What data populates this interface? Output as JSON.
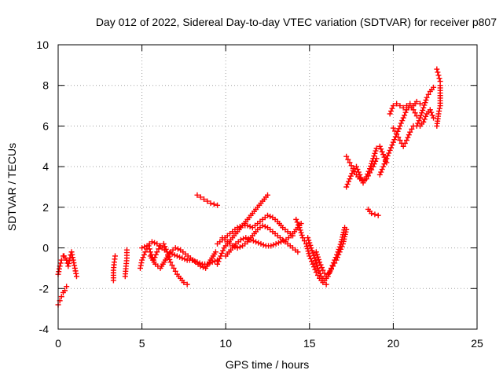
{
  "chart_data": {
    "type": "scatter",
    "title": "Day 012 of 2022, Sidereal Day-to-day VTEC variation (SDTVAR) for receiver p807",
    "xlabel": "GPS time / hours",
    "ylabel": "SDTVAR / TECUs",
    "xlim": [
      0,
      25
    ],
    "ylim": [
      -4,
      10
    ],
    "x_ticks": [
      0,
      5,
      10,
      15,
      20,
      25
    ],
    "y_ticks": [
      -4,
      -2,
      0,
      2,
      4,
      6,
      8,
      10
    ],
    "grid": true,
    "marker": "plus",
    "colors": {
      "points": "#ff0000",
      "grid": "#a0a0a0",
      "axis": "#000000"
    },
    "series_tracks": [
      {
        "x": [
          0.0,
          0.1,
          0.2,
          0.3,
          0.4,
          0.5
        ],
        "y": [
          -2.8,
          -2.6,
          -2.4,
          -2.2,
          -2.1,
          -1.9
        ]
      },
      {
        "x": [
          0.0,
          0.1,
          0.2,
          0.3
        ],
        "y": [
          -1.3,
          -0.9,
          -0.6,
          -0.4
        ]
      },
      {
        "x": [
          0.35,
          0.5,
          0.6,
          0.7,
          0.8,
          0.9,
          1.0,
          1.1
        ],
        "y": [
          -0.4,
          -0.6,
          -0.9,
          -0.5,
          -0.2,
          -0.6,
          -1.0,
          -1.4
        ]
      },
      {
        "x": [
          3.3,
          3.3,
          3.35,
          3.4
        ],
        "y": [
          -1.6,
          -1.1,
          -0.7,
          -0.4
        ]
      },
      {
        "x": [
          4.0,
          4.05,
          4.1,
          4.1
        ],
        "y": [
          -1.4,
          -0.9,
          -0.5,
          -0.1
        ]
      },
      {
        "x": [
          4.9,
          5.0,
          5.2,
          5.4,
          5.5,
          5.7,
          5.9,
          6.1,
          6.3,
          6.5,
          6.7,
          6.9,
          7.1,
          7.3,
          7.5,
          7.7
        ],
        "y": [
          -1.0,
          -0.6,
          -0.2,
          0.1,
          -0.2,
          -0.6,
          -0.2,
          0.1,
          0.2,
          -0.2,
          -0.7,
          -1.0,
          -1.3,
          -1.5,
          -1.7,
          -1.8
        ]
      },
      {
        "x": [
          5.0,
          5.3,
          5.6,
          5.9,
          6.2,
          6.5,
          6.8,
          7.1,
          7.4,
          7.7,
          8.0,
          8.3,
          8.6,
          8.9,
          9.2,
          9.5
        ],
        "y": [
          0.0,
          0.1,
          0.3,
          0.2,
          0.0,
          -0.2,
          -0.3,
          -0.4,
          -0.5,
          -0.6,
          -0.6,
          -0.7,
          -0.8,
          -0.8,
          -0.7,
          -0.6
        ]
      },
      {
        "x": [
          5.5,
          5.8,
          6.1,
          6.4,
          6.7,
          7.0,
          7.3,
          7.6,
          7.9,
          8.2,
          8.5,
          8.8,
          9.1,
          9.4
        ],
        "y": [
          -0.4,
          -0.8,
          -1.0,
          -0.6,
          -0.2,
          0.0,
          -0.1,
          -0.3,
          -0.5,
          -0.7,
          -0.9,
          -1.0,
          -0.6,
          -0.2
        ]
      },
      {
        "x": [
          8.3,
          8.5,
          8.7,
          8.9,
          9.1,
          9.3,
          9.5
        ],
        "y": [
          2.6,
          2.5,
          2.4,
          2.3,
          2.2,
          2.15,
          2.1
        ]
      },
      {
        "x": [
          9.5,
          9.7,
          9.9,
          10.2,
          10.5,
          10.8,
          11.1,
          11.4,
          11.7,
          12.0,
          12.3,
          12.5
        ],
        "y": [
          -0.8,
          -0.4,
          0.0,
          0.3,
          0.6,
          0.9,
          1.2,
          1.5,
          1.8,
          2.1,
          2.4,
          2.6
        ]
      },
      {
        "x": [
          9.5,
          9.8,
          10.1,
          10.4,
          10.7,
          11.0,
          11.3,
          11.6,
          11.9,
          12.2,
          12.5,
          12.8,
          13.1,
          13.4,
          13.7,
          14.0
        ],
        "y": [
          0.2,
          0.4,
          0.6,
          0.8,
          1.0,
          1.1,
          1.1,
          1.0,
          1.2,
          1.4,
          1.6,
          1.5,
          1.3,
          1.0,
          0.8,
          0.6
        ]
      },
      {
        "x": [
          10.0,
          10.3,
          10.6,
          10.9,
          11.2,
          11.5,
          11.8,
          12.1,
          12.4,
          12.7,
          13.0,
          13.3,
          13.6,
          13.9,
          14.2,
          14.5
        ],
        "y": [
          -0.4,
          -0.1,
          0.2,
          0.4,
          0.5,
          0.4,
          0.3,
          0.2,
          0.1,
          0.1,
          0.2,
          0.3,
          0.4,
          0.6,
          0.9,
          1.2
        ]
      },
      {
        "x": [
          9.8,
          10.1,
          10.4,
          10.7,
          11.0,
          11.3,
          11.6,
          11.9,
          12.2,
          12.5,
          12.8,
          13.1,
          13.4,
          13.7,
          14.0,
          14.3
        ],
        "y": [
          0.5,
          0.3,
          0.1,
          0.0,
          0.1,
          0.3,
          0.6,
          0.9,
          1.1,
          1.0,
          0.8,
          0.6,
          0.4,
          0.2,
          0.0,
          -0.2
        ]
      },
      {
        "x": [
          14.2,
          14.4,
          14.6,
          14.8,
          15.0,
          15.2,
          15.4,
          15.6,
          15.8,
          16.0
        ],
        "y": [
          1.4,
          1.0,
          0.5,
          0.2,
          -0.4,
          -0.8,
          -1.2,
          -1.5,
          -1.7,
          -1.8
        ]
      },
      {
        "x": [
          14.9,
          15.1,
          15.3,
          15.5,
          15.7,
          15.9,
          16.1,
          16.3,
          16.5,
          16.7,
          16.9,
          17.1
        ],
        "y": [
          0.5,
          0.0,
          -0.5,
          -1.0,
          -1.4,
          -1.6,
          -1.4,
          -1.0,
          -0.6,
          -0.2,
          0.3,
          1.0
        ]
      },
      {
        "x": [
          15.4,
          15.6,
          15.8,
          16.0,
          16.2,
          16.4,
          16.6,
          16.8,
          17.0,
          17.2
        ],
        "y": [
          -0.2,
          -0.7,
          -1.1,
          -1.4,
          -1.2,
          -0.9,
          -0.6,
          -0.2,
          0.2,
          0.9
        ]
      },
      {
        "x": [
          17.2,
          17.4,
          17.6,
          17.8,
          18.0,
          18.2,
          18.4,
          18.6,
          18.8,
          19.0,
          19.2,
          19.4,
          19.6
        ],
        "y": [
          3.0,
          3.4,
          3.8,
          4.0,
          3.6,
          3.2,
          3.5,
          3.9,
          4.4,
          4.9,
          5.0,
          4.6,
          4.2
        ]
      },
      {
        "x": [
          17.2,
          17.4,
          17.6,
          17.8,
          18.0,
          18.2,
          18.4,
          18.6,
          18.8,
          19.0
        ],
        "y": [
          4.5,
          4.2,
          3.9,
          3.6,
          3.4,
          3.3,
          3.4,
          3.7,
          4.0,
          4.4
        ]
      },
      {
        "x": [
          18.5,
          18.7,
          18.9,
          19.1
        ],
        "y": [
          1.9,
          1.7,
          1.65,
          1.6
        ]
      },
      {
        "x": [
          19.2,
          19.4,
          19.6,
          19.8,
          20.0,
          20.2,
          20.4,
          20.6,
          20.8,
          21.0,
          21.2,
          21.4
        ],
        "y": [
          3.6,
          4.0,
          4.4,
          4.8,
          5.2,
          5.6,
          6.0,
          6.4,
          6.8,
          7.0,
          6.8,
          6.5
        ]
      },
      {
        "x": [
          19.8,
          20.0,
          20.2,
          20.4,
          20.6,
          20.8,
          21.0,
          21.2,
          21.4,
          21.6
        ],
        "y": [
          6.6,
          7.0,
          7.1,
          7.0,
          6.9,
          7.0,
          7.1,
          7.0,
          7.2,
          7.1
        ]
      },
      {
        "x": [
          20.0,
          20.2,
          20.4,
          20.6,
          20.8,
          21.0,
          21.2
        ],
        "y": [
          5.9,
          5.6,
          5.3,
          5.0,
          5.3,
          5.7,
          6.0
        ]
      },
      {
        "x": [
          21.4,
          21.6,
          21.8,
          22.0,
          22.2,
          22.4
        ],
        "y": [
          6.0,
          6.4,
          6.9,
          7.4,
          7.7,
          7.9
        ]
      },
      {
        "x": [
          21.6,
          21.8,
          22.0,
          22.2,
          22.4
        ],
        "y": [
          6.0,
          6.2,
          6.6,
          6.8,
          6.4
        ]
      },
      {
        "x": [
          22.6,
          22.7,
          22.8,
          22.8
        ],
        "y": [
          6.0,
          6.6,
          7.0,
          8.0
        ]
      },
      {
        "x": [
          22.6,
          22.7,
          22.8
        ],
        "y": [
          8.8,
          8.5,
          8.2
        ]
      }
    ]
  }
}
